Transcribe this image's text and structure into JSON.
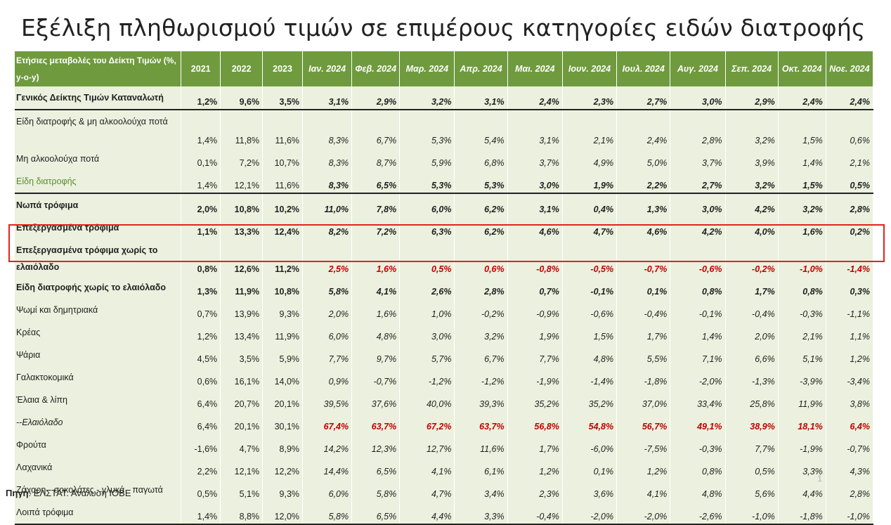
{
  "title": "Εξέλιξη πληθωρισμού τιμών σε επιμέρους κατηγορίες ειδών διατροφής",
  "colors": {
    "header_bg": "#6f9a3e",
    "cell_bg": "#ebf1de",
    "highlight_border": "#e52020",
    "red_text": "#c00000",
    "green_text": "#5c8a2a"
  },
  "table": {
    "header_label": "Ετήσιες μεταβολές του Δείκτη Τιμών (%, y-o-y)",
    "columns": [
      "2021",
      "2022",
      "2023",
      "Ιαν. 2024",
      "Φεβ. 2024",
      "Μαρ. 2024",
      "Απρ. 2024",
      "Μαι. 2024",
      "Ιουν. 2024",
      "Ιουλ. 2024",
      "Αυγ. 2024",
      "Σεπ. 2024",
      "Οκτ. 2024",
      "Νοε. 2024"
    ],
    "rows": [
      {
        "label": "Γενικός Δείκτης Τιμών Καταναλωτή",
        "values": [
          "1,2%",
          "9,6%",
          "3,5%",
          "3,1%",
          "2,9%",
          "3,2%",
          "3,1%",
          "2,4%",
          "2,3%",
          "2,7%",
          "3,0%",
          "2,9%",
          "2,4%",
          "2,4%"
        ]
      },
      {
        "label": "Είδη διατροφής & μη αλκοολούχα ποτά",
        "values": [
          "1,4%",
          "11,8%",
          "11,6%",
          "8,3%",
          "6,7%",
          "5,3%",
          "5,4%",
          "3,1%",
          "2,1%",
          "2,4%",
          "2,8%",
          "3,2%",
          "1,5%",
          "0,6%"
        ]
      },
      {
        "label": "Μη αλκοολούχα ποτά",
        "values": [
          "0,1%",
          "7,2%",
          "10,7%",
          "8,3%",
          "8,7%",
          "5,9%",
          "6,8%",
          "3,7%",
          "4,9%",
          "5,0%",
          "3,7%",
          "3,9%",
          "1,4%",
          "2,1%"
        ]
      },
      {
        "label": "Είδη διατροφής",
        "values": [
          "1,4%",
          "12,1%",
          "11,6%",
          "8,3%",
          "6,5%",
          "5,3%",
          "5,3%",
          "3,0%",
          "1,9%",
          "2,2%",
          "2,7%",
          "3,2%",
          "1,5%",
          "0,5%"
        ]
      },
      {
        "label": "Νωπά τρόφιμα",
        "values": [
          "2,0%",
          "10,8%",
          "10,2%",
          "11,0%",
          "7,8%",
          "6,0%",
          "6,2%",
          "3,1%",
          "0,4%",
          "1,3%",
          "3,0%",
          "4,2%",
          "3,2%",
          "2,8%"
        ]
      },
      {
        "label": "Επεξεργασμένα τρόφιμα",
        "values": [
          "1,1%",
          "13,3%",
          "12,4%",
          "8,2%",
          "7,2%",
          "6,3%",
          "6,2%",
          "4,6%",
          "4,7%",
          "4,6%",
          "4,2%",
          "4,0%",
          "1,6%",
          "0,2%"
        ]
      },
      {
        "label": "Επεξεργασμένα τρόφιμα χωρίς το ελαιόλαδο",
        "values": [
          "0,8%",
          "12,6%",
          "11,2%",
          "2,5%",
          "1,6%",
          "0,5%",
          "0,6%",
          "-0,8%",
          "-0,5%",
          "-0,7%",
          "-0,6%",
          "-0,2%",
          "-1,0%",
          "-1,4%"
        ]
      },
      {
        "label": "Είδη διατροφής χωρίς το ελαιόλαδο",
        "values": [
          "1,3%",
          "11,9%",
          "10,8%",
          "5,8%",
          "4,1%",
          "2,6%",
          "2,8%",
          "0,7%",
          "-0,1%",
          "0,1%",
          "0,8%",
          "1,7%",
          "0,8%",
          "0,3%"
        ]
      },
      {
        "label": "Ψωμί και δημητριακά",
        "values": [
          "0,7%",
          "13,9%",
          "9,3%",
          "2,0%",
          "1,6%",
          "1,0%",
          "-0,2%",
          "-0,9%",
          "-0,6%",
          "-0,4%",
          "-0,1%",
          "-0,4%",
          "-0,3%",
          "-1,1%"
        ]
      },
      {
        "label": "Κρέας",
        "values": [
          "1,2%",
          "13,4%",
          "11,9%",
          "6,0%",
          "4,8%",
          "3,0%",
          "3,2%",
          "1,9%",
          "1,5%",
          "1,7%",
          "1,4%",
          "2,0%",
          "2,1%",
          "1,1%"
        ]
      },
      {
        "label": "Ψάρια",
        "values": [
          "4,5%",
          "3,5%",
          "5,9%",
          "7,7%",
          "9,7%",
          "5,7%",
          "6,7%",
          "7,7%",
          "4,8%",
          "5,5%",
          "7,1%",
          "6,6%",
          "5,1%",
          "1,2%"
        ]
      },
      {
        "label": "Γαλακτοκομικά",
        "values": [
          "0,6%",
          "16,1%",
          "14,0%",
          "0,9%",
          "-0,7%",
          "-1,2%",
          "-1,2%",
          "-1,9%",
          "-1,4%",
          "-1,8%",
          "-2,0%",
          "-1,3%",
          "-3,9%",
          "-3,4%"
        ]
      },
      {
        "label": "Έλαια & λίπη",
        "values": [
          "6,4%",
          "20,7%",
          "20,1%",
          "39,5%",
          "37,6%",
          "40,0%",
          "39,3%",
          "35,2%",
          "35,2%",
          "37,0%",
          "33,4%",
          "25,8%",
          "11,9%",
          "3,8%"
        ]
      },
      {
        "label": "--Ελαιόλαδο",
        "values": [
          "6,4%",
          "20,1%",
          "30,1%",
          "67,4%",
          "63,7%",
          "67,2%",
          "63,7%",
          "56,8%",
          "54,8%",
          "56,7%",
          "49,1%",
          "38,9%",
          "18,1%",
          "6,4%"
        ]
      },
      {
        "label": "Φρούτα",
        "values": [
          "-1,6%",
          "4,7%",
          "8,9%",
          "14,2%",
          "12,3%",
          "12,7%",
          "11,6%",
          "1,7%",
          "-6,0%",
          "-7,5%",
          "-0,3%",
          "7,7%",
          "-1,9%",
          "-0,7%"
        ]
      },
      {
        "label": "Λαχανικά",
        "values": [
          "2,2%",
          "12,1%",
          "12,2%",
          "14,4%",
          "6,5%",
          "4,1%",
          "6,1%",
          "1,2%",
          "0,1%",
          "1,2%",
          "0,8%",
          "0,5%",
          "3,3%",
          "4,3%"
        ]
      },
      {
        "label": "Ζάχαρη - σοκολάτες - γλυκά - παγωτά",
        "values": [
          "0,5%",
          "5,1%",
          "9,3%",
          "6,0%",
          "5,8%",
          "4,7%",
          "3,4%",
          "2,3%",
          "3,6%",
          "4,1%",
          "4,8%",
          "5,6%",
          "4,4%",
          "2,8%"
        ]
      },
      {
        "label": "Λοιπά τρόφιμα",
        "values": [
          "1,4%",
          "8,8%",
          "12,0%",
          "5,8%",
          "6,5%",
          "4,4%",
          "3,3%",
          "-0,4%",
          "-2,0%",
          "-2,0%",
          "-2,6%",
          "-1,0%",
          "-1,8%",
          "-1,0%"
        ]
      }
    ]
  },
  "source": {
    "label": "Πηγή",
    "text": ": ΕΛΣΤΑΤ. Ανάλυση ΙΟΒΕ"
  },
  "page_number": "1"
}
